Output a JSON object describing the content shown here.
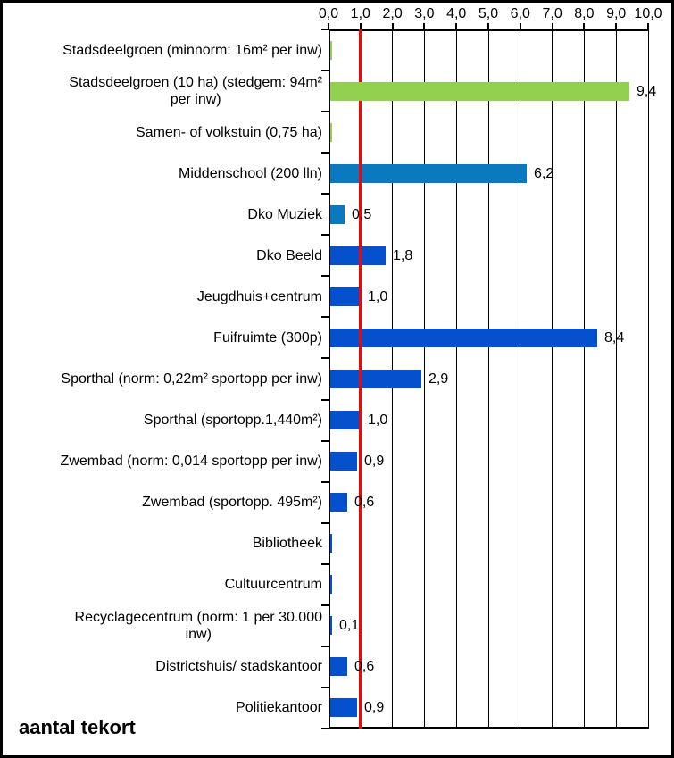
{
  "chart_data": {
    "type": "bar",
    "orientation": "horizontal",
    "footer_label": "aantal tekort",
    "axis": {
      "min": 0,
      "max": 10,
      "tick_labels": [
        "0,0",
        "1,0",
        "2,0",
        "3,0",
        "4,0",
        "5,0",
        "6,0",
        "7,0",
        "8,0",
        "9,0",
        "10,0"
      ],
      "grid": true,
      "position": "top"
    },
    "reference_line": {
      "value": 1.0,
      "color": "#ff0000"
    },
    "colors": {
      "green": "#92d050",
      "blue_light": "#0a79c0",
      "blue": "#0551cd"
    },
    "rows": [
      {
        "category": "Stadsdeelgroen (minnorm: 16m² per inw)",
        "value": 0.05,
        "value_label": "",
        "color": "green"
      },
      {
        "category": "Stadsdeelgroen (10 ha) (stedgem: 94m²\nper inw)",
        "value": 9.4,
        "value_label": "9,4",
        "color": "green"
      },
      {
        "category": "Samen- of volkstuin  (0,75 ha)",
        "value": 0.05,
        "value_label": "",
        "color": "green"
      },
      {
        "category": "Middenschool (200 lln)",
        "value": 6.2,
        "value_label": "6,2",
        "color": "blue_light"
      },
      {
        "category": "Dko Muziek",
        "value": 0.5,
        "value_label": "0,5",
        "color": "blue_light"
      },
      {
        "category": "Dko Beeld",
        "value": 1.8,
        "value_label": "1,8",
        "color": "blue"
      },
      {
        "category": "Jeugdhuis+centrum",
        "value": 1.0,
        "value_label": "1,0",
        "color": "blue"
      },
      {
        "category": "Fuifruimte (300p)",
        "value": 8.4,
        "value_label": "8,4",
        "color": "blue"
      },
      {
        "category": "Sporthal (norm: 0,22m² sportopp per inw)",
        "value": 2.9,
        "value_label": "2,9",
        "color": "blue"
      },
      {
        "category": "Sporthal (sportopp.1,440m²)",
        "value": 1.0,
        "value_label": "1,0",
        "color": "blue"
      },
      {
        "category": "Zwembad (norm: 0,014 sportopp per inw)",
        "value": 0.9,
        "value_label": "0,9",
        "color": "blue"
      },
      {
        "category": "Zwembad (sportopp. 495m²)",
        "value": 0.6,
        "value_label": "0,6",
        "color": "blue"
      },
      {
        "category": "Bibliotheek",
        "value": 0.03,
        "value_label": "",
        "color": "blue"
      },
      {
        "category": "Cultuurcentrum",
        "value": 0.04,
        "value_label": "",
        "color": "blue"
      },
      {
        "category": "Recyclagecentrum (norm: 1 per 30.000\ninw)",
        "value": 0.1,
        "value_label": "0,1",
        "color": "blue"
      },
      {
        "category": "Districtshuis/ stadskantoor",
        "value": 0.6,
        "value_label": "0,6",
        "color": "blue"
      },
      {
        "category": "Politiekantoor",
        "value": 0.9,
        "value_label": "0,9",
        "color": "blue"
      }
    ]
  }
}
